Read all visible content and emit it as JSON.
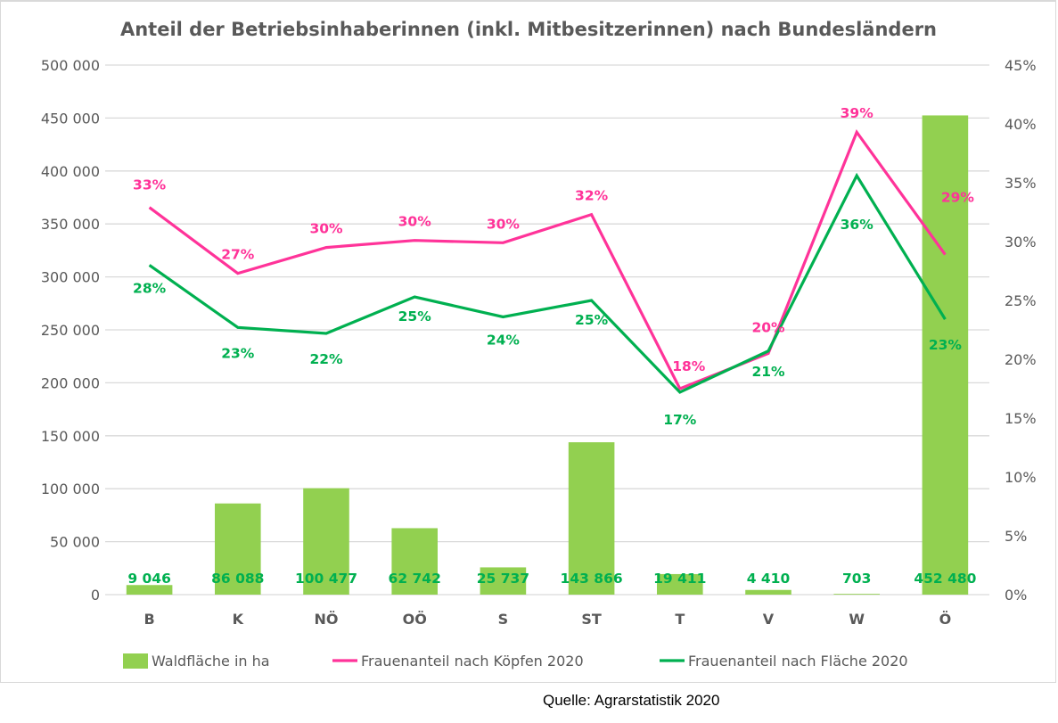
{
  "chart_data": {
    "type": "bar+line",
    "title": "Anteil der Betriebsinhaberinnen (inkl. Mitbesitzerinnen) nach Bundesländern",
    "categories": [
      "B",
      "K",
      "NÖ",
      "OÖ",
      "S",
      "ST",
      "T",
      "V",
      "W",
      "Ö"
    ],
    "bars": {
      "name": "Waldfläche in ha",
      "axis": "left",
      "color": "#92d050",
      "label_color": "#00b050",
      "values": [
        9046,
        86088,
        100477,
        62742,
        25737,
        143866,
        19411,
        4410,
        703,
        452480
      ],
      "labels": [
        "9 046",
        "86 088",
        "100 477",
        "62 742",
        "25 737",
        "143 866",
        "19 411",
        "4 410",
        "703",
        "452 480"
      ]
    },
    "series": [
      {
        "name": "Frauenanteil nach Köpfen 2020",
        "axis": "right",
        "color": "#ff3399",
        "values": [
          0.329,
          0.273,
          0.295,
          0.301,
          0.299,
          0.323,
          0.175,
          0.205,
          0.393,
          0.289
        ],
        "labels": [
          "33%",
          "27%",
          "30%",
          "30%",
          "30%",
          "32%",
          "18%",
          "20%",
          "39%",
          "29%"
        ]
      },
      {
        "name": "Frauenanteil nach Fläche 2020",
        "axis": "right",
        "color": "#00b050",
        "values": [
          0.28,
          0.227,
          0.222,
          0.253,
          0.236,
          0.25,
          0.172,
          0.207,
          0.356,
          0.234
        ],
        "labels": [
          "28%",
          "23%",
          "22%",
          "25%",
          "24%",
          "25%",
          "17%",
          "21%",
          "36%",
          "23%"
        ]
      }
    ],
    "y_left": {
      "range": [
        0,
        500000
      ],
      "ticks": [
        0,
        50000,
        100000,
        150000,
        200000,
        250000,
        300000,
        350000,
        400000,
        450000,
        500000
      ],
      "tick_labels": [
        "0",
        "50 000",
        "100 000",
        "150 000",
        "200 000",
        "250 000",
        "300 000",
        "350 000",
        "400 000",
        "450 000",
        "500 000"
      ]
    },
    "y_right": {
      "range": [
        0,
        0.45
      ],
      "ticks": [
        0,
        0.05,
        0.1,
        0.15,
        0.2,
        0.25,
        0.3,
        0.35,
        0.4,
        0.45
      ],
      "tick_labels": [
        "0%",
        "5%",
        "10%",
        "15%",
        "20%",
        "25%",
        "30%",
        "35%",
        "40%",
        "45%"
      ]
    },
    "xlabel": "",
    "grid": true,
    "legend_position": "bottom",
    "legend": [
      "Waldfläche in ha",
      "Frauenanteil nach Köpfen 2020",
      "Frauenanteil nach Fläche 2020"
    ],
    "gridline_color": "#d9d9d9",
    "text_color": "#595959"
  },
  "source": "Quelle:  Agrarstatistik 2020"
}
